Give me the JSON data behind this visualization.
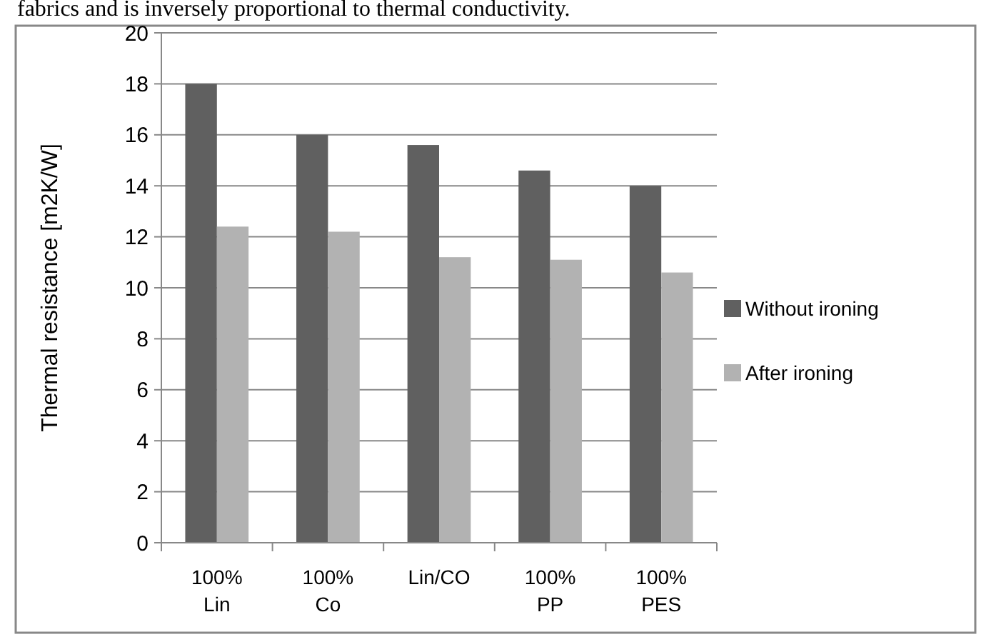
{
  "chart_data": {
    "type": "bar",
    "ylabel": "Thermal resistance [m2K/W]",
    "annotations": [
      "fabrics and is inversely proportional to thermal conductivity."
    ],
    "categories": [
      "100% Lin",
      "100% Co",
      "Lin/CO",
      "100% PP",
      "100% PES"
    ],
    "series": [
      {
        "name": "Without ironing",
        "color": "#606060",
        "values": [
          18,
          16,
          15.6,
          14.6,
          14
        ]
      },
      {
        "name": "After ironing",
        "color": "#b2b2b2",
        "values": [
          12.4,
          12.2,
          11.2,
          11.1,
          10.6
        ]
      }
    ],
    "ylim": [
      0,
      20
    ],
    "yticks": [
      0,
      2,
      4,
      6,
      8,
      10,
      12,
      14,
      16,
      18,
      20
    ],
    "grid": "y",
    "legend": "right"
  }
}
